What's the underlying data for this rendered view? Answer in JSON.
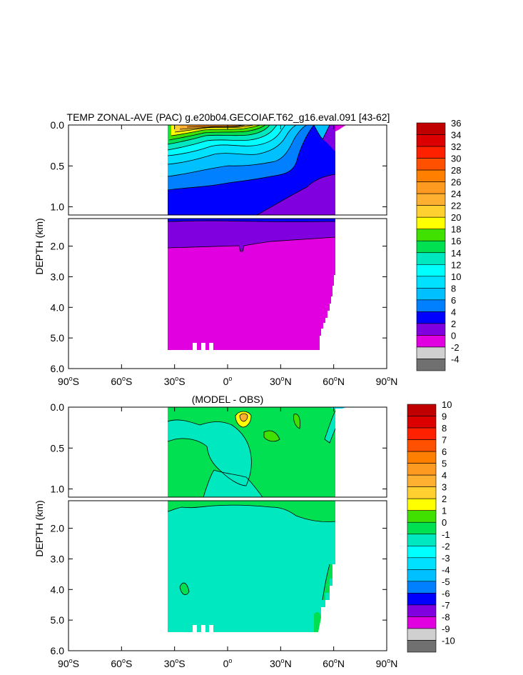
{
  "chart_data": [
    {
      "type": "heatmap",
      "title": "TEMP ZONAL-AVE (PAC) g.e20b04.GECOIAF.T62_g16.eval.091 [43-62]",
      "ylabel": "DEPTH (km)",
      "x_ticks": [
        {
          "value": -90,
          "label": "90°S"
        },
        {
          "value": -60,
          "label": "60°S"
        },
        {
          "value": -30,
          "label": "30°S"
        },
        {
          "value": 0,
          "label": "0°"
        },
        {
          "value": 30,
          "label": "30°N"
        },
        {
          "value": 60,
          "label": "60°N"
        },
        {
          "value": 90,
          "label": "90°N"
        }
      ],
      "y_ticks_upper": [
        "0.0",
        "0.5",
        "1.0"
      ],
      "y_ticks_lower": [
        "2.0",
        "3.0",
        "4.0",
        "5.0",
        "6.0"
      ],
      "colorbar": {
        "levels": [
          "36",
          "34",
          "32",
          "30",
          "28",
          "26",
          "24",
          "22",
          "20",
          "18",
          "16",
          "14",
          "12",
          "10",
          "8",
          "6",
          "4",
          "2",
          "0",
          "-2",
          "-4"
        ],
        "colors": [
          "#c00000",
          "#dd0000",
          "#ff2000",
          "#ff5000",
          "#ff8000",
          "#ff9a20",
          "#ffb030",
          "#ffd030",
          "#ffff00",
          "#40e000",
          "#00e050",
          "#00e8c0",
          "#00ffff",
          "#00e0ff",
          "#00c0ff",
          "#0080ff",
          "#0000ff",
          "#8000e0",
          "#e000e0",
          "#d0d0d0",
          "#707070"
        ]
      }
    },
    {
      "type": "heatmap",
      "title": "(MODEL - OBS)",
      "ylabel": "DEPTH (km)",
      "x_ticks": [
        {
          "value": -90,
          "label": "90°S"
        },
        {
          "value": -60,
          "label": "60°S"
        },
        {
          "value": -30,
          "label": "30°S"
        },
        {
          "value": 0,
          "label": "0°"
        },
        {
          "value": 30,
          "label": "30°N"
        },
        {
          "value": 60,
          "label": "60°N"
        },
        {
          "value": 90,
          "label": "90°N"
        }
      ],
      "y_ticks_upper": [
        "0.0",
        "0.5",
        "1.0"
      ],
      "y_ticks_lower": [
        "2.0",
        "3.0",
        "4.0",
        "5.0",
        "6.0"
      ],
      "colorbar": {
        "levels": [
          "10",
          "9",
          "8",
          "7",
          "6",
          "5",
          "4",
          "3",
          "2",
          "1",
          "0",
          "-1",
          "-2",
          "-3",
          "-4",
          "-5",
          "-6",
          "-7",
          "-8",
          "-9",
          "-10"
        ],
        "colors": [
          "#c00000",
          "#dd0000",
          "#ff2000",
          "#ff5000",
          "#ff8000",
          "#ff9a20",
          "#ffb030",
          "#ffd030",
          "#ffff00",
          "#40e000",
          "#00e050",
          "#00e8c0",
          "#00ffff",
          "#00e0ff",
          "#00c0ff",
          "#0080ff",
          "#0000ff",
          "#8000e0",
          "#e000e0",
          "#d0d0d0",
          "#707070"
        ]
      }
    }
  ]
}
